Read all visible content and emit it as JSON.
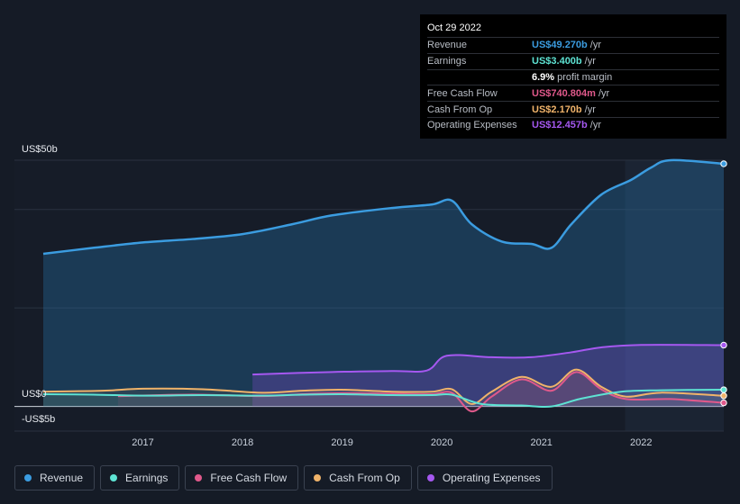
{
  "tooltip": {
    "date": "Oct 29 2022",
    "rows": [
      {
        "label": "Revenue",
        "value": "US$49.270b",
        "unit": "/yr",
        "color": "#3b9ce0"
      },
      {
        "label": "Earnings",
        "value": "US$3.400b",
        "unit": "/yr",
        "color": "#5ee3d3"
      },
      {
        "label": "",
        "value": "6.9%",
        "unit": "profit margin",
        "color": "#ffffff"
      },
      {
        "label": "Free Cash Flow",
        "value": "US$740.804m",
        "unit": "/yr",
        "color": "#e0598b"
      },
      {
        "label": "Cash From Op",
        "value": "US$2.170b",
        "unit": "/yr",
        "color": "#f0b36a"
      },
      {
        "label": "Operating Expenses",
        "value": "US$12.457b",
        "unit": "/yr",
        "color": "#a558f0"
      }
    ]
  },
  "axis": {
    "y_top_label": "US$50b",
    "y_zero_label": "US$0",
    "y_bottom_label": "-US$5b"
  },
  "legend": [
    {
      "label": "Revenue",
      "color": "#3b9ce0"
    },
    {
      "label": "Earnings",
      "color": "#5ee3d3"
    },
    {
      "label": "Free Cash Flow",
      "color": "#e0598b"
    },
    {
      "label": "Cash From Op",
      "color": "#f0b36a"
    },
    {
      "label": "Operating Expenses",
      "color": "#a558f0"
    }
  ],
  "chart_data": {
    "type": "line",
    "unit": "US$ billions",
    "ylim": [
      -5,
      50
    ],
    "xlim": [
      2016.0,
      2022.83
    ],
    "x_ticks": [
      "2017",
      "2018",
      "2019",
      "2020",
      "2021",
      "2022"
    ],
    "grid": true,
    "highlight_start": 2021.84,
    "series": [
      {
        "name": "Revenue",
        "color": "#3b9ce0",
        "points": [
          [
            2016.0,
            31.0
          ],
          [
            2016.5,
            32.2
          ],
          [
            2017.0,
            33.3
          ],
          [
            2017.5,
            34.0
          ],
          [
            2018.0,
            35.0
          ],
          [
            2018.5,
            37.0
          ],
          [
            2018.9,
            38.8
          ],
          [
            2019.5,
            40.3
          ],
          [
            2019.9,
            41.0
          ],
          [
            2020.1,
            41.8
          ],
          [
            2020.3,
            37.0
          ],
          [
            2020.6,
            33.5
          ],
          [
            2020.9,
            33.0
          ],
          [
            2021.1,
            32.2
          ],
          [
            2021.3,
            37.0
          ],
          [
            2021.6,
            43.0
          ],
          [
            2021.9,
            46.0
          ],
          [
            2022.1,
            48.5
          ],
          [
            2022.3,
            50.0
          ],
          [
            2022.83,
            49.27
          ]
        ]
      },
      {
        "name": "Operating Expenses",
        "color": "#a558f0",
        "points": [
          [
            2018.1,
            6.5
          ],
          [
            2018.9,
            7.0
          ],
          [
            2019.5,
            7.2
          ],
          [
            2019.85,
            7.3
          ],
          [
            2020.05,
            10.3
          ],
          [
            2020.5,
            10.0
          ],
          [
            2020.9,
            10.0
          ],
          [
            2021.3,
            11.0
          ],
          [
            2021.6,
            12.0
          ],
          [
            2022.0,
            12.5
          ],
          [
            2022.83,
            12.457
          ]
        ]
      },
      {
        "name": "Cash From Op",
        "color": "#f0b36a",
        "points": [
          [
            2016.0,
            3.0
          ],
          [
            2016.6,
            3.2
          ],
          [
            2017.0,
            3.6
          ],
          [
            2017.6,
            3.5
          ],
          [
            2018.2,
            2.8
          ],
          [
            2018.6,
            3.2
          ],
          [
            2019.0,
            3.4
          ],
          [
            2019.5,
            3.0
          ],
          [
            2019.9,
            3.0
          ],
          [
            2020.1,
            3.5
          ],
          [
            2020.3,
            0.5
          ],
          [
            2020.5,
            3.0
          ],
          [
            2020.8,
            6.0
          ],
          [
            2021.1,
            4.0
          ],
          [
            2021.35,
            7.5
          ],
          [
            2021.6,
            4.0
          ],
          [
            2021.85,
            2.0
          ],
          [
            2022.2,
            2.8
          ],
          [
            2022.83,
            2.17
          ]
        ]
      },
      {
        "name": "Free Cash Flow",
        "color": "#e0598b",
        "points": [
          [
            2016.75,
            2.1
          ],
          [
            2017.5,
            2.4
          ],
          [
            2018.2,
            2.1
          ],
          [
            2018.6,
            2.5
          ],
          [
            2019.0,
            2.7
          ],
          [
            2019.5,
            2.6
          ],
          [
            2019.9,
            2.5
          ],
          [
            2020.1,
            2.8
          ],
          [
            2020.3,
            -1.0
          ],
          [
            2020.5,
            2.0
          ],
          [
            2020.8,
            5.5
          ],
          [
            2021.1,
            3.2
          ],
          [
            2021.35,
            7.0
          ],
          [
            2021.6,
            3.5
          ],
          [
            2021.85,
            1.5
          ],
          [
            2022.3,
            1.5
          ],
          [
            2022.83,
            0.740804
          ]
        ]
      },
      {
        "name": "Earnings",
        "color": "#5ee3d3",
        "points": [
          [
            2016.0,
            2.5
          ],
          [
            2016.5,
            2.4
          ],
          [
            2017.0,
            2.2
          ],
          [
            2017.6,
            2.3
          ],
          [
            2018.2,
            2.2
          ],
          [
            2018.6,
            2.4
          ],
          [
            2019.0,
            2.5
          ],
          [
            2019.5,
            2.3
          ],
          [
            2019.9,
            2.3
          ],
          [
            2020.1,
            2.4
          ],
          [
            2020.4,
            0.5
          ],
          [
            2020.8,
            0.2
          ],
          [
            2021.1,
            0.0
          ],
          [
            2021.4,
            1.6
          ],
          [
            2021.8,
            3.0
          ],
          [
            2022.2,
            3.3
          ],
          [
            2022.83,
            3.4
          ]
        ]
      }
    ]
  }
}
